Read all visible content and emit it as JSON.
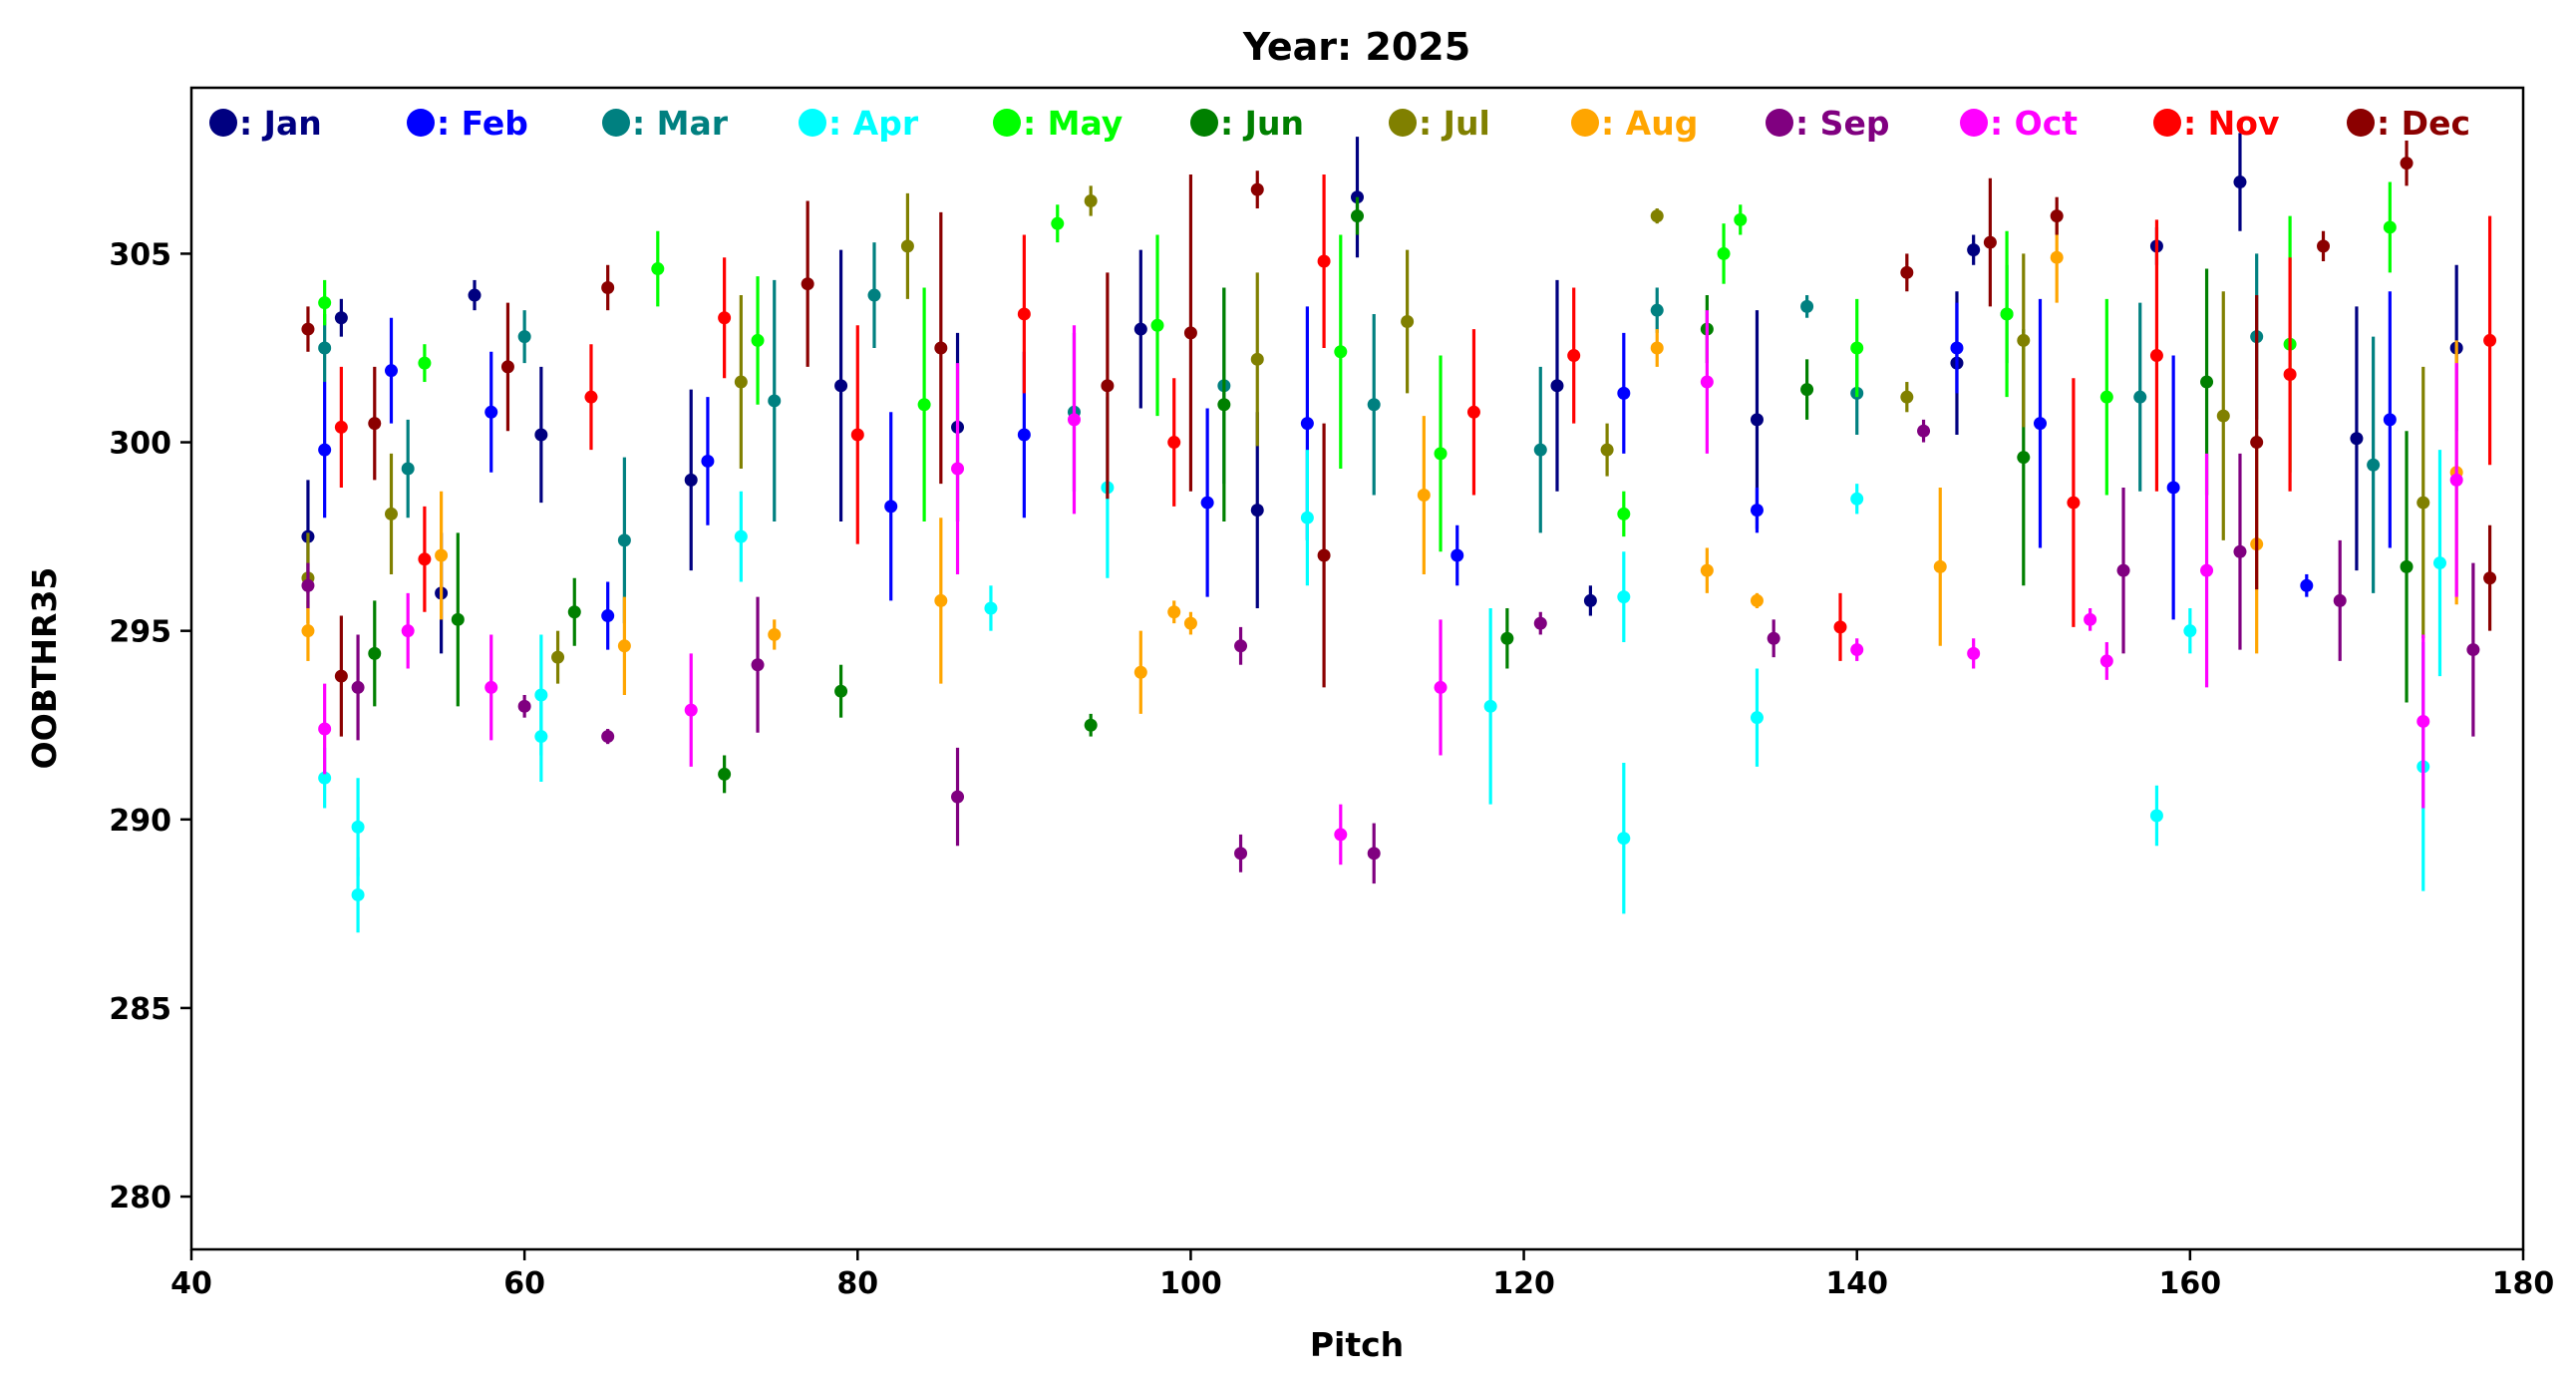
{
  "chart_data": {
    "type": "scatter",
    "title": "Year: 2025",
    "xlabel": "Pitch",
    "ylabel": "OOBTHR35",
    "xlim": [
      40,
      180
    ],
    "ylim": [
      278.6,
      309.4
    ],
    "xticks": [
      40,
      60,
      80,
      100,
      120,
      140,
      160,
      180
    ],
    "yticks": [
      280,
      285,
      290,
      295,
      300,
      305
    ],
    "grid": false,
    "legend_position": "top",
    "error_bars": true,
    "series": [
      {
        "name": "Jan",
        "label": ": Jan",
        "color": "#000080",
        "points": [
          [
            47,
            297.5,
            1.5
          ],
          [
            49,
            303.3,
            0.5
          ],
          [
            55,
            296,
            1.6
          ],
          [
            57,
            303.9,
            0.4
          ],
          [
            61,
            300.2,
            1.8
          ],
          [
            70,
            299,
            2.4
          ],
          [
            79,
            301.5,
            3.6
          ],
          [
            86,
            300.4,
            2.5
          ],
          [
            97,
            303,
            2.1
          ],
          [
            104,
            298.2,
            2.6
          ],
          [
            110,
            306.5,
            1.6
          ],
          [
            122,
            301.5,
            2.8
          ],
          [
            124,
            295.8,
            0.4
          ],
          [
            134,
            300.6,
            2.9
          ],
          [
            146,
            302.1,
            1.9
          ],
          [
            147,
            305.1,
            0.4
          ],
          [
            158,
            305.2,
            0.5
          ],
          [
            163,
            306.9,
            1.3
          ],
          [
            170,
            300.1,
            3.5
          ],
          [
            176,
            302.5,
            2.2
          ]
        ]
      },
      {
        "name": "Feb",
        "label": ": Feb",
        "color": "#0000ff",
        "points": [
          [
            48,
            299.8,
            1.8
          ],
          [
            52,
            301.9,
            1.4
          ],
          [
            58,
            300.8,
            1.6
          ],
          [
            65,
            295.4,
            0.9
          ],
          [
            71,
            299.5,
            1.7
          ],
          [
            82,
            298.3,
            2.5
          ],
          [
            90,
            300.2,
            2.2
          ],
          [
            101,
            298.4,
            2.5
          ],
          [
            107,
            300.5,
            3.1
          ],
          [
            116,
            297,
            0.8
          ],
          [
            126,
            301.3,
            1.6
          ],
          [
            134,
            298.2,
            0.6
          ],
          [
            146,
            302.5,
            1.2
          ],
          [
            151,
            300.5,
            3.3
          ],
          [
            159,
            298.8,
            3.5
          ],
          [
            167,
            296.2,
            0.3
          ],
          [
            172,
            300.6,
            3.4
          ]
        ]
      },
      {
        "name": "Mar",
        "label": ": Mar",
        "color": "#008080",
        "points": [
          [
            48,
            302.5,
            0.9
          ],
          [
            53,
            299.3,
            1.3
          ],
          [
            60,
            302.8,
            0.7
          ],
          [
            66,
            297.4,
            2.2
          ],
          [
            75,
            301.1,
            3.2
          ],
          [
            81,
            303.9,
            1.4
          ],
          [
            93,
            300.8,
            2.1
          ],
          [
            102,
            301.5,
            2.6
          ],
          [
            111,
            301,
            2.4
          ],
          [
            121,
            299.8,
            2.2
          ],
          [
            128,
            303.5,
            0.6
          ],
          [
            137,
            303.6,
            0.3
          ],
          [
            140,
            301.3,
            1.1
          ],
          [
            149,
            303.4,
            1.3
          ],
          [
            157,
            301.2,
            2.5
          ],
          [
            164,
            302.8,
            2.2
          ],
          [
            171,
            299.4,
            3.4
          ]
        ]
      },
      {
        "name": "Apr",
        "label": ": Apr",
        "color": "#00ffff",
        "points": [
          [
            48,
            291.1,
            0.8
          ],
          [
            50,
            288,
            1
          ],
          [
            50,
            289.8,
            1.3
          ],
          [
            61,
            293.3,
            1.6
          ],
          [
            61,
            292.2,
            1.2
          ],
          [
            73,
            297.5,
            1.2
          ],
          [
            88,
            295.6,
            0.6
          ],
          [
            95,
            298.8,
            2.4
          ],
          [
            107,
            298,
            1.8
          ],
          [
            118,
            293,
            2.6
          ],
          [
            126,
            289.5,
            2
          ],
          [
            126,
            295.9,
            1.2
          ],
          [
            134,
            292.7,
            1.3
          ],
          [
            140,
            298.5,
            0.4
          ],
          [
            158,
            290.1,
            0.8
          ],
          [
            160,
            295,
            0.6
          ],
          [
            174,
            291.4,
            3.3
          ],
          [
            175,
            296.8,
            3
          ]
        ]
      },
      {
        "name": "May",
        "label": ": May",
        "color": "#00ff00",
        "points": [
          [
            48,
            303.7,
            0.6
          ],
          [
            54,
            302.1,
            0.5
          ],
          [
            68,
            304.6,
            1
          ],
          [
            74,
            302.7,
            1.7
          ],
          [
            84,
            301,
            3.1
          ],
          [
            92,
            305.8,
            0.5
          ],
          [
            98,
            303.1,
            2.4
          ],
          [
            109,
            302.4,
            3.1
          ],
          [
            115,
            299.7,
            2.6
          ],
          [
            126,
            298.1,
            0.6
          ],
          [
            132,
            305,
            0.8
          ],
          [
            133,
            305.9,
            0.4
          ],
          [
            140,
            302.5,
            1.3
          ],
          [
            149,
            303.4,
            2.2
          ],
          [
            155,
            301.2,
            2.6
          ],
          [
            166,
            302.6,
            3.4
          ],
          [
            172,
            305.7,
            1.2
          ]
        ]
      },
      {
        "name": "Jun",
        "label": ": Jun",
        "color": "#008000",
        "points": [
          [
            51,
            294.4,
            1.4
          ],
          [
            56,
            295.3,
            2.3
          ],
          [
            63,
            295.5,
            0.9
          ],
          [
            72,
            291.2,
            0.5
          ],
          [
            79,
            293.4,
            0.7
          ],
          [
            94,
            292.5,
            0.3
          ],
          [
            102,
            301,
            3.1
          ],
          [
            110,
            306,
            0.5
          ],
          [
            119,
            294.8,
            0.8
          ],
          [
            131,
            303,
            0.9
          ],
          [
            137,
            301.4,
            0.8
          ],
          [
            150,
            299.6,
            3.4
          ],
          [
            161,
            301.6,
            3
          ],
          [
            173,
            296.7,
            3.6
          ]
        ]
      },
      {
        "name": "Jul",
        "label": ": Jul",
        "color": "#808000",
        "points": [
          [
            47,
            296.4,
            1.2
          ],
          [
            52,
            298.1,
            1.6
          ],
          [
            62,
            294.3,
            0.7
          ],
          [
            73,
            301.6,
            2.3
          ],
          [
            83,
            305.2,
            1.4
          ],
          [
            94,
            306.4,
            0.4
          ],
          [
            104,
            302.2,
            2.3
          ],
          [
            113,
            303.2,
            1.9
          ],
          [
            125,
            299.8,
            0.7
          ],
          [
            128,
            306,
            0.2
          ],
          [
            143,
            301.2,
            0.4
          ],
          [
            150,
            302.7,
            2.3
          ],
          [
            162,
            300.7,
            3.3
          ],
          [
            174,
            298.4,
            3.6
          ]
        ]
      },
      {
        "name": "Aug",
        "label": ": Aug",
        "color": "#ffa500",
        "points": [
          [
            47,
            295,
            0.8
          ],
          [
            55,
            297,
            1.7
          ],
          [
            66,
            294.6,
            1.3
          ],
          [
            75,
            294.9,
            0.4
          ],
          [
            85,
            295.8,
            2.2
          ],
          [
            97,
            293.9,
            1.1
          ],
          [
            99,
            295.5,
            0.3
          ],
          [
            100,
            295.2,
            0.3
          ],
          [
            114,
            298.6,
            2.1
          ],
          [
            128,
            302.5,
            0.5
          ],
          [
            131,
            296.6,
            0.6
          ],
          [
            134,
            295.8,
            0.2
          ],
          [
            145,
            296.7,
            2.1
          ],
          [
            152,
            304.9,
            1.2
          ],
          [
            164,
            297.3,
            2.9
          ],
          [
            176,
            299.2,
            3.5
          ]
        ]
      },
      {
        "name": "Sep",
        "label": ": Sep",
        "color": "#800080",
        "points": [
          [
            47,
            296.2,
            0.6
          ],
          [
            50,
            293.5,
            1.4
          ],
          [
            60,
            293,
            0.3
          ],
          [
            65,
            292.2,
            0.2
          ],
          [
            74,
            294.1,
            1.8
          ],
          [
            86,
            290.6,
            1.3
          ],
          [
            103,
            294.6,
            0.5
          ],
          [
            103,
            289.1,
            0.5
          ],
          [
            111,
            289.1,
            0.8
          ],
          [
            121,
            295.2,
            0.3
          ],
          [
            135,
            294.8,
            0.5
          ],
          [
            144,
            300.3,
            0.3
          ],
          [
            156,
            296.6,
            2.2
          ],
          [
            163,
            297.1,
            2.6
          ],
          [
            169,
            295.8,
            1.6
          ],
          [
            177,
            294.5,
            2.3
          ]
        ]
      },
      {
        "name": "Oct",
        "label": ": Oct",
        "color": "#ff00ff",
        "points": [
          [
            48,
            292.4,
            1.2
          ],
          [
            53,
            295,
            1
          ],
          [
            58,
            293.5,
            1.4
          ],
          [
            70,
            292.9,
            1.5
          ],
          [
            86,
            299.3,
            2.8
          ],
          [
            93,
            300.6,
            2.5
          ],
          [
            109,
            289.6,
            0.8
          ],
          [
            115,
            293.5,
            1.8
          ],
          [
            131,
            301.6,
            1.9
          ],
          [
            140,
            294.5,
            0.3
          ],
          [
            147,
            294.4,
            0.4
          ],
          [
            154,
            295.3,
            0.3
          ],
          [
            155,
            294.2,
            0.5
          ],
          [
            161,
            296.6,
            3.1
          ],
          [
            174,
            292.6,
            2.3
          ],
          [
            176,
            299,
            3.1
          ]
        ]
      },
      {
        "name": "Nov",
        "label": ": Nov",
        "color": "#ff0000",
        "points": [
          [
            49,
            300.4,
            1.6
          ],
          [
            54,
            296.9,
            1.4
          ],
          [
            64,
            301.2,
            1.4
          ],
          [
            72,
            303.3,
            1.6
          ],
          [
            80,
            300.2,
            2.9
          ],
          [
            90,
            303.4,
            2.1
          ],
          [
            99,
            300,
            1.7
          ],
          [
            108,
            304.8,
            2.3
          ],
          [
            117,
            300.8,
            2.2
          ],
          [
            123,
            302.3,
            1.8
          ],
          [
            139,
            295.1,
            0.9
          ],
          [
            153,
            298.4,
            3.3
          ],
          [
            158,
            302.3,
            3.6
          ],
          [
            166,
            301.8,
            3.1
          ],
          [
            178,
            302.7,
            3.3
          ]
        ]
      },
      {
        "name": "Dec",
        "label": ": Dec",
        "color": "#8b0000",
        "points": [
          [
            47,
            303,
            0.6
          ],
          [
            49,
            293.8,
            1.6
          ],
          [
            51,
            300.5,
            1.5
          ],
          [
            59,
            302,
            1.7
          ],
          [
            65,
            304.1,
            0.6
          ],
          [
            77,
            304.2,
            2.2
          ],
          [
            85,
            302.5,
            3.6
          ],
          [
            95,
            301.5,
            3
          ],
          [
            100,
            302.9,
            4.2
          ],
          [
            104,
            306.7,
            0.5
          ],
          [
            108,
            297,
            3.5
          ],
          [
            143,
            304.5,
            0.5
          ],
          [
            148,
            305.3,
            1.7
          ],
          [
            152,
            306,
            0.5
          ],
          [
            164,
            300,
            3.9
          ],
          [
            168,
            305.2,
            0.4
          ],
          [
            173,
            307.4,
            0.6
          ],
          [
            178,
            296.4,
            1.4
          ]
        ]
      }
    ]
  }
}
